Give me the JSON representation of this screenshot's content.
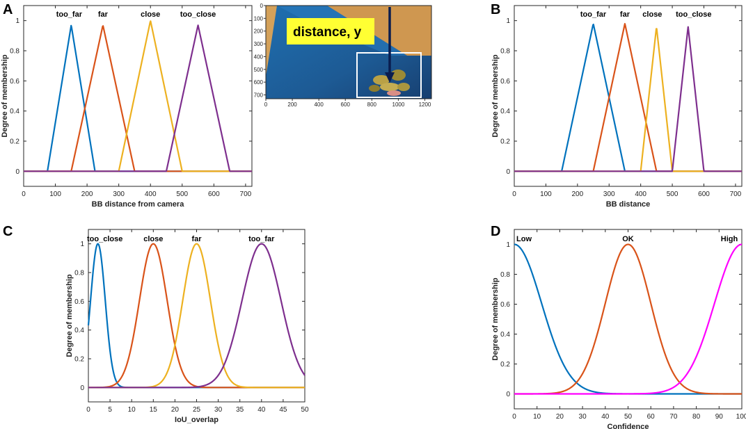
{
  "figure_letters": [
    "A",
    "B",
    "C",
    "D"
  ],
  "inset": {
    "label": "distance, y",
    "x_ticks": [
      "0",
      "200",
      "400",
      "600",
      "800",
      "1000",
      "1200"
    ],
    "y_ticks": [
      "0",
      "100",
      "200",
      "300",
      "400",
      "500",
      "600",
      "700"
    ]
  },
  "chart_data": [
    {
      "panel": "A",
      "type": "line",
      "xlabel": "BB distance from camera",
      "ylabel": "Degree of membership",
      "xlim": [
        0,
        720
      ],
      "ylim": [
        -0.1,
        1.1
      ],
      "xticks": [
        0,
        100,
        200,
        300,
        400,
        500,
        600,
        700
      ],
      "yticks": [
        0,
        0.2,
        0.4,
        0.6,
        0.8,
        1
      ],
      "shape": "triangular",
      "series": [
        {
          "name": "too_far",
          "color": "#0072BD",
          "params": [
            75,
            150,
            225
          ],
          "peak": 0.97
        },
        {
          "name": "far",
          "color": "#D95319",
          "params": [
            150,
            250,
            350
          ],
          "peak": 0.97
        },
        {
          "name": "close",
          "color": "#EDB120",
          "params": [
            300,
            400,
            500
          ],
          "peak": 1.0
        },
        {
          "name": "too_close",
          "color": "#7E2F8E",
          "params": [
            450,
            550,
            650
          ],
          "peak": 0.97
        }
      ]
    },
    {
      "panel": "B",
      "type": "line",
      "xlabel": "BB distance",
      "ylabel": "Degree of membership",
      "xlim": [
        0,
        720
      ],
      "ylim": [
        -0.1,
        1.1
      ],
      "xticks": [
        0,
        100,
        200,
        300,
        400,
        500,
        600,
        700
      ],
      "yticks": [
        0,
        0.2,
        0.4,
        0.6,
        0.8,
        1
      ],
      "shape": "triangular",
      "series": [
        {
          "name": "too_far",
          "color": "#0072BD",
          "params": [
            150,
            250,
            350
          ],
          "peak": 0.98
        },
        {
          "name": "far",
          "color": "#D95319",
          "params": [
            250,
            350,
            450
          ],
          "peak": 0.98
        },
        {
          "name": "close",
          "color": "#EDB120",
          "params": [
            400,
            450,
            500
          ],
          "peak": 0.96
        },
        {
          "name": "too_close",
          "color": "#7E2F8E",
          "params": [
            500,
            550,
            600
          ],
          "peak": 0.96
        }
      ]
    },
    {
      "panel": "C",
      "type": "line",
      "xlabel": "IoU_overlap",
      "ylabel": "Degree of membership",
      "xlim": [
        0,
        50
      ],
      "ylim": [
        -0.1,
        1.1
      ],
      "xticks": [
        0,
        5,
        10,
        15,
        20,
        25,
        30,
        35,
        40,
        45,
        50
      ],
      "yticks": [
        0,
        0.2,
        0.4,
        0.6,
        0.8,
        1
      ],
      "shape": "gaussian",
      "series": [
        {
          "name": "too_close",
          "color": "#0072BD",
          "params": [
            2.2,
            1.7
          ],
          "peak": 1
        },
        {
          "name": "close",
          "color": "#D95319",
          "params": [
            15,
            3.2
          ],
          "peak": 1
        },
        {
          "name": "far",
          "color": "#EDB120",
          "params": [
            25,
            3.2
          ],
          "peak": 1
        },
        {
          "name": "too_far",
          "color": "#7E2F8E",
          "params": [
            40,
            4.5
          ],
          "peak": 1
        }
      ]
    },
    {
      "panel": "D",
      "type": "line",
      "xlabel": "Confidence",
      "ylabel": "Degree of membership",
      "xlim": [
        0,
        100
      ],
      "ylim": [
        -0.1,
        1.1
      ],
      "xticks": [
        0,
        10,
        20,
        30,
        40,
        50,
        60,
        70,
        80,
        90,
        100
      ],
      "yticks": [
        0,
        0.2,
        0.4,
        0.6,
        0.8,
        1
      ],
      "shape": "gaussian",
      "series": [
        {
          "name": "Low",
          "color": "#0072BD",
          "params": [
            0,
            12
          ],
          "peak": 1
        },
        {
          "name": "OK",
          "color": "#D95319",
          "params": [
            50,
            10
          ],
          "peak": 1
        },
        {
          "name": "High",
          "color": "#FF00FF",
          "params": [
            100,
            12
          ],
          "peak": 1
        }
      ]
    }
  ]
}
